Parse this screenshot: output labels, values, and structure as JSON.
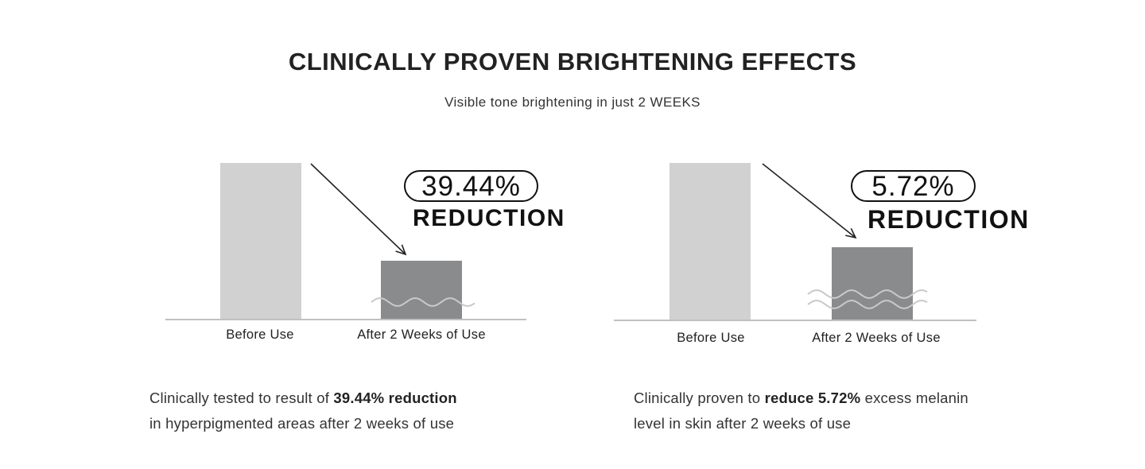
{
  "header": {
    "title": "CLINICALLY PROVEN BRIGHTENING EFFECTS",
    "subtitle": "Visible tone brightening in just 2 WEEKS"
  },
  "colors": {
    "before_bar": "#d0d1d0",
    "after_bar": "#8a8b8c",
    "wave": "#c9c9c9",
    "baseline": "#c0c0c0",
    "arrow": "#222222"
  },
  "chart_data": [
    {
      "type": "bar",
      "categories": [
        "Before Use",
        "After 2 Weeks of Use"
      ],
      "reduction": "39.44%",
      "reduction_label": "REDUCTION",
      "axis_break": "wavy line across after bar",
      "description": {
        "pre": "Clinically tested to result of ",
        "bold": "39.44% reduction",
        "post": "",
        "line2": "in hyperpigmented areas after 2 weeks of use"
      }
    },
    {
      "type": "bar",
      "categories": [
        "Before Use",
        "After 2 Weeks of Use"
      ],
      "reduction": "5.72%",
      "reduction_label": "REDUCTION",
      "axis_break": "double wavy line across after bar",
      "description": {
        "pre": "Clinically proven to ",
        "bold": "reduce 5.72%",
        "post": " excess melanin",
        "line2": "level in skin after 2 weeks of use"
      }
    }
  ]
}
